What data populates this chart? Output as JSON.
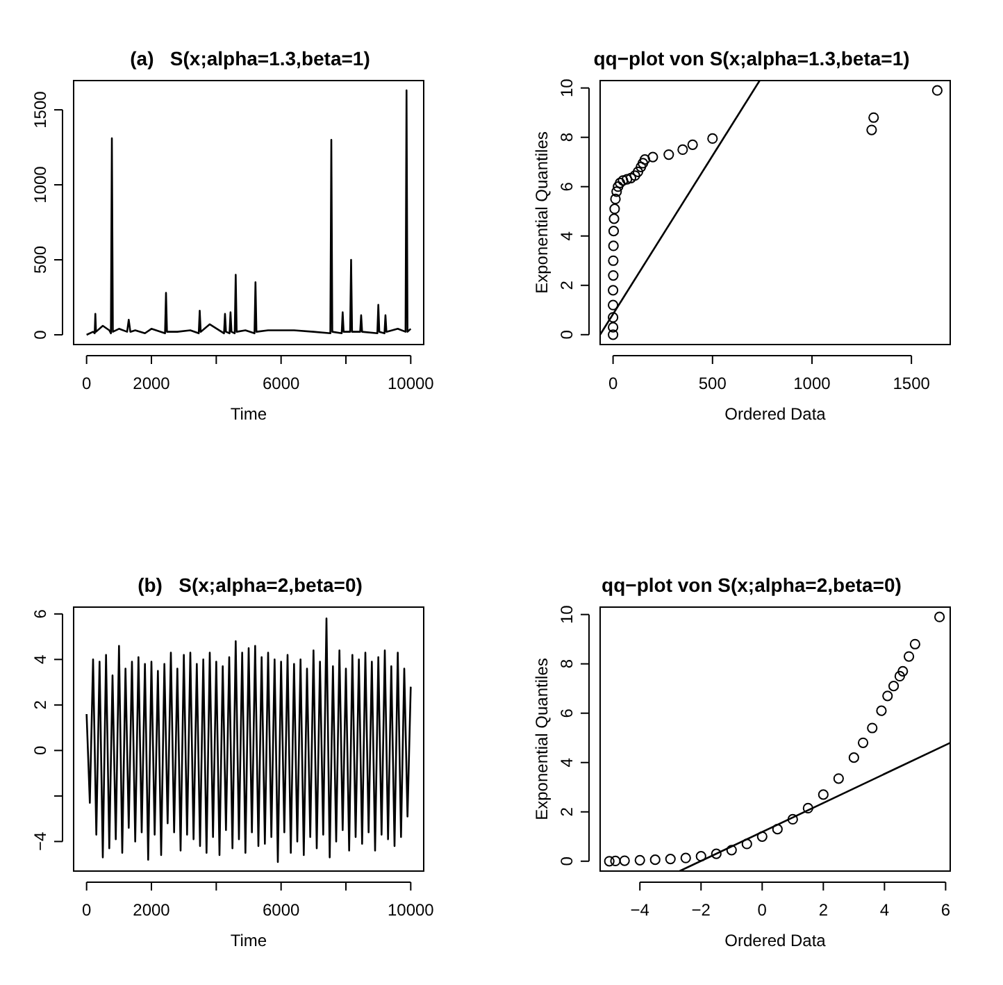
{
  "chart_data": [
    {
      "type": "line",
      "title": "(a)   S(x;alpha=1.3,beta=1)",
      "xlabel": "Time",
      "xlim": [
        -400,
        10400
      ],
      "xticks": [
        0,
        2000,
        {
          "value": 4000,
          "label": null
        },
        6000,
        10000,
        {
          "value": 8000,
          "label": null
        }
      ],
      "ylim": [
        -65,
        1695
      ],
      "yticks": [
        0,
        500,
        1000,
        1500
      ],
      "series": [
        {
          "color": "#000000",
          "x": [
            0,
            200,
            250,
            270,
            290,
            500,
            700,
            750,
            780,
            810,
            1000,
            1250,
            1300,
            1350,
            1500,
            1800,
            2000,
            2420,
            2450,
            2480,
            2800,
            3200,
            3460,
            3490,
            3520,
            3800,
            4240,
            4270,
            4300,
            4410,
            4440,
            4470,
            4570,
            4600,
            4630,
            4900,
            5180,
            5210,
            5240,
            5600,
            6000,
            6400,
            7000,
            7520,
            7550,
            7580,
            7870,
            7900,
            7930,
            8130,
            8160,
            8190,
            8440,
            8470,
            8500,
            8970,
            9000,
            9030,
            9190,
            9220,
            9250,
            9600,
            9840,
            9870,
            9900,
            10000
          ],
          "values": [
            0,
            20,
            10,
            140,
            20,
            60,
            30,
            10,
            1310,
            20,
            40,
            20,
            100,
            20,
            30,
            10,
            40,
            10,
            280,
            20,
            20,
            30,
            10,
            160,
            20,
            70,
            10,
            140,
            20,
            10,
            150,
            20,
            10,
            400,
            20,
            30,
            10,
            350,
            20,
            30,
            30,
            30,
            20,
            10,
            1300,
            20,
            10,
            150,
            20,
            20,
            500,
            20,
            20,
            130,
            20,
            10,
            200,
            20,
            10,
            130,
            20,
            40,
            20,
            1630,
            20,
            40
          ]
        }
      ]
    },
    {
      "type": "scatter",
      "title": "qq−plot von S(x;alpha=1.3,beta=1)",
      "xlabel": "Ordered Data",
      "ylabel": "Exponential Quantiles",
      "xlim": [
        -65,
        1695
      ],
      "xticks": [
        0,
        500,
        1000,
        1500
      ],
      "ylim": [
        -0.4,
        10.3
      ],
      "yticks": [
        0,
        2,
        4,
        6,
        8,
        10
      ],
      "series": [
        {
          "marker": "circle",
          "color": "#000000",
          "x": [
            0,
            0,
            0,
            0,
            0,
            1,
            1,
            2,
            3,
            5,
            8,
            12,
            18,
            25,
            35,
            50,
            70,
            90,
            110,
            125,
            140,
            150,
            160,
            200,
            280,
            350,
            400,
            500,
            1300,
            1310,
            1630
          ],
          "values": [
            0,
            0.3,
            0.7,
            1.2,
            1.8,
            2.4,
            3.0,
            3.6,
            4.2,
            4.7,
            5.1,
            5.5,
            5.8,
            6.0,
            6.15,
            6.25,
            6.3,
            6.35,
            6.45,
            6.6,
            6.8,
            6.95,
            7.1,
            7.2,
            7.3,
            7.5,
            7.7,
            7.95,
            8.3,
            8.8,
            9.9
          ]
        },
        {
          "type": "line",
          "color": "#000000",
          "x": [
            -65,
            737
          ],
          "values": [
            0,
            10.3
          ]
        }
      ]
    },
    {
      "type": "line",
      "title": "(b)   S(x;alpha=2,beta=0)",
      "xlabel": "Time",
      "xlim": [
        -400,
        10400
      ],
      "xticks": [
        0,
        2000,
        {
          "value": 4000,
          "label": null
        },
        6000,
        {
          "value": 8000,
          "label": null
        },
        10000
      ],
      "ylim": [
        -5.3,
        6.3
      ],
      "yticks": [
        {
          "value": -4,
          "label": "−4"
        },
        {
          "value": -2,
          "label": null
        },
        0,
        2,
        4,
        6
      ],
      "series": [
        {
          "color": "#000000",
          "x": [
            0,
            100,
            200,
            300,
            400,
            500,
            600,
            700,
            800,
            900,
            1000,
            1100,
            1200,
            1300,
            1400,
            1500,
            1600,
            1700,
            1800,
            1900,
            2000,
            2100,
            2200,
            2300,
            2400,
            2500,
            2600,
            2700,
            2800,
            2900,
            3000,
            3100,
            3200,
            3300,
            3400,
            3500,
            3600,
            3700,
            3800,
            3900,
            4000,
            4100,
            4200,
            4300,
            4400,
            4500,
            4600,
            4700,
            4800,
            4900,
            5000,
            5100,
            5200,
            5300,
            5400,
            5500,
            5600,
            5700,
            5800,
            5900,
            6000,
            6100,
            6200,
            6300,
            6400,
            6500,
            6600,
            6700,
            6800,
            6900,
            7000,
            7100,
            7200,
            7300,
            7400,
            7500,
            7600,
            7700,
            7800,
            7900,
            8000,
            8100,
            8200,
            8300,
            8400,
            8500,
            8600,
            8700,
            8800,
            8900,
            9000,
            9100,
            9200,
            9300,
            9400,
            9500,
            9600,
            9700,
            9800,
            9900,
            10000
          ],
          "values": [
            1.6,
            -2.3,
            4.0,
            -3.7,
            3.9,
            -4.7,
            4.2,
            -4.3,
            3.3,
            -3.9,
            4.6,
            -4.5,
            3.6,
            -3.4,
            3.9,
            -4.0,
            4.1,
            -3.6,
            3.8,
            -4.8,
            3.9,
            -3.7,
            3.5,
            -4.6,
            3.8,
            -3.2,
            4.3,
            -3.6,
            3.6,
            -4.4,
            4.2,
            -3.7,
            4.3,
            -3.9,
            3.8,
            -4.2,
            4.0,
            -4.5,
            4.3,
            -3.8,
            3.9,
            -4.6,
            3.7,
            -3.5,
            4.1,
            -4.3,
            4.8,
            -3.9,
            4.3,
            -4.5,
            4.5,
            -3.6,
            4.6,
            -4.2,
            4.1,
            -4.1,
            4.3,
            -3.8,
            4.0,
            -4.9,
            3.9,
            -3.6,
            4.2,
            -4.5,
            3.8,
            -4.0,
            4.0,
            -4.6,
            3.6,
            -3.8,
            4.4,
            -4.3,
            3.9,
            -3.7,
            5.8,
            -4.7,
            3.7,
            -4.0,
            4.4,
            -3.5,
            3.6,
            -4.4,
            4.2,
            -3.8,
            4.0,
            -4.1,
            4.3,
            -3.6,
            3.9,
            -4.4,
            4.1,
            -3.7,
            4.4,
            -3.9,
            3.7,
            -4.2,
            4.3,
            -3.8,
            3.6,
            -2.9,
            2.8
          ]
        }
      ]
    },
    {
      "type": "scatter",
      "title": "qq−plot von S(x;alpha=2,beta=0)",
      "xlabel": "Ordered Data",
      "ylabel": "Exponential Quantiles",
      "xlim": [
        -5.3,
        6.15
      ],
      "xticks": [
        {
          "value": -4,
          "label": "−4"
        },
        {
          "value": -2,
          "label": "−2"
        },
        0,
        2,
        4,
        6
      ],
      "ylim": [
        -0.4,
        10.3
      ],
      "yticks": [
        0,
        2,
        4,
        6,
        8,
        10
      ],
      "series": [
        {
          "marker": "circle",
          "color": "#000000",
          "x": [
            -5,
            -4.8,
            -4.5,
            -4,
            -3.5,
            -3,
            -2.5,
            -2,
            -1.5,
            -1,
            -0.5,
            0,
            0.5,
            1,
            1.5,
            2,
            2.5,
            3,
            3.3,
            3.6,
            3.9,
            4.1,
            4.3,
            4.5,
            4.6,
            4.8,
            5.0,
            5.8
          ],
          "values": [
            0,
            0.01,
            0.02,
            0.04,
            0.06,
            0.09,
            0.13,
            0.2,
            0.3,
            0.45,
            0.7,
            1.0,
            1.3,
            1.7,
            2.15,
            2.7,
            3.35,
            4.2,
            4.8,
            5.4,
            6.1,
            6.7,
            7.1,
            7.5,
            7.7,
            8.3,
            8.8,
            9.9
          ]
        },
        {
          "type": "line",
          "color": "#000000",
          "x": [
            -2.7,
            6.15
          ],
          "values": [
            -0.4,
            4.8
          ]
        }
      ]
    }
  ]
}
